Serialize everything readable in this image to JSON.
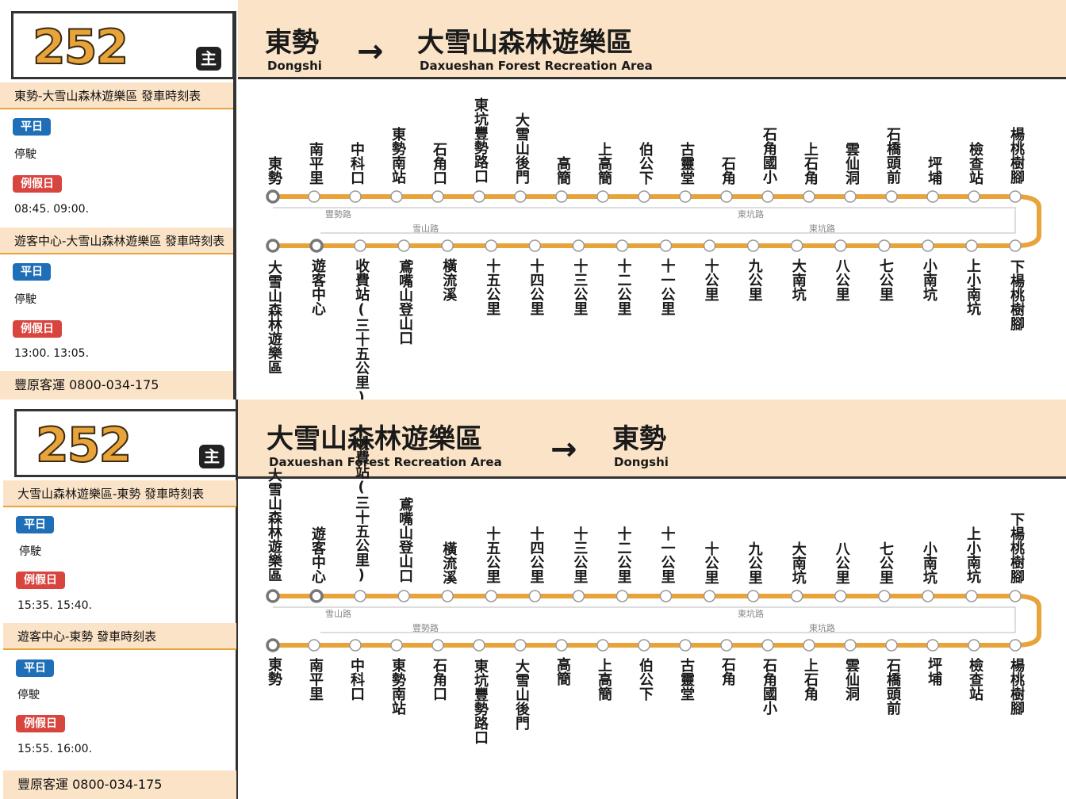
{
  "route_number": "252",
  "main_tag": "主",
  "colors": {
    "accent": "#e8a33a",
    "header_bg": "#fbe3c7",
    "weekday": "#1f6fb8",
    "holiday": "#d8453f"
  },
  "arrow": "→",
  "panel_a": {
    "from_zh": "東勢",
    "from_en": "Dongshi",
    "to_zh": "大雪山森林遊樂區",
    "to_en": "Daxueshan Forest Recreation Area",
    "schedules": [
      {
        "title": "東勢-大雪山森林遊樂區   發車時刻表",
        "weekday_label": "平日",
        "weekday_text": "停駛",
        "holiday_label": "例假日",
        "holiday_text": "08:45. 09:00."
      },
      {
        "title": "遊客中心-大雪山森林遊樂區   發車時刻表",
        "weekday_label": "平日",
        "weekday_text": "停駛",
        "holiday_label": "例假日",
        "holiday_text": "13:00. 13:05."
      }
    ],
    "footer": "豐原客運   0800-034-175",
    "top_stops": [
      "東勢",
      "南平里",
      "中科口",
      "東勢南站",
      "石角口",
      "東坑豐勢路口",
      "大雪山後門",
      "高簡",
      "上高簡",
      "伯公下",
      "古靈堂",
      "石角",
      "石角國小",
      "上石角",
      "雲仙洞",
      "石橋頭前",
      "坪埔",
      "檢查站",
      "楊桃樹腳"
    ],
    "bottom_stops": [
      "大雪山森林遊樂區",
      "遊客中心",
      "收費站(三十五公里)",
      "鳶嘴山登山口",
      "橫流溪",
      "十五公里",
      "十四公里",
      "十三公里",
      "十二公里",
      "十一公里",
      "十公里",
      "九公里",
      "大南坑",
      "八公里",
      "七公里",
      "小南坑",
      "上小南坑",
      "下楊桃樹腳"
    ],
    "road_labels": {
      "top_left": "豐勢路",
      "top_right": "東坑路",
      "bottom_left": "雪山路",
      "bottom_right": "東坑路"
    }
  },
  "panel_b": {
    "from_zh": "大雪山森林遊樂區",
    "from_en": "Daxueshan Forest Recreation Area",
    "to_zh": "東勢",
    "to_en": "Dongshi",
    "schedules": [
      {
        "title": "大雪山森林遊樂區-東勢   發車時刻表",
        "weekday_label": "平日",
        "weekday_text": "停駛",
        "holiday_label": "例假日",
        "holiday_text": "15:35. 15:40."
      },
      {
        "title": "遊客中心-東勢   發車時刻表",
        "weekday_label": "平日",
        "weekday_text": "停駛",
        "holiday_label": "例假日",
        "holiday_text": "15:55. 16:00."
      }
    ],
    "footer": "豐原客運   0800-034-175",
    "top_stops": [
      "大雪山森林遊樂區",
      "遊客中心",
      "收費站(三十五公里)",
      "鳶嘴山登山口",
      "橫流溪",
      "十五公里",
      "十四公里",
      "十三公里",
      "十二公里",
      "十一公里",
      "十公里",
      "九公里",
      "大南坑",
      "八公里",
      "七公里",
      "小南坑",
      "上小南坑",
      "下楊桃樹腳"
    ],
    "bottom_stops": [
      "東勢",
      "南平里",
      "中科口",
      "東勢南站",
      "石角口",
      "東坑豐勢路口",
      "大雪山後門",
      "高簡",
      "上高簡",
      "伯公下",
      "古靈堂",
      "石角",
      "石角國小",
      "上石角",
      "雲仙洞",
      "石橋頭前",
      "坪埔",
      "檢查站",
      "楊桃樹腳"
    ],
    "road_labels": {
      "top_left": "雪山路",
      "top_right": "東坑路",
      "bottom_left": "豐勢路",
      "bottom_right": "東坑路"
    }
  }
}
